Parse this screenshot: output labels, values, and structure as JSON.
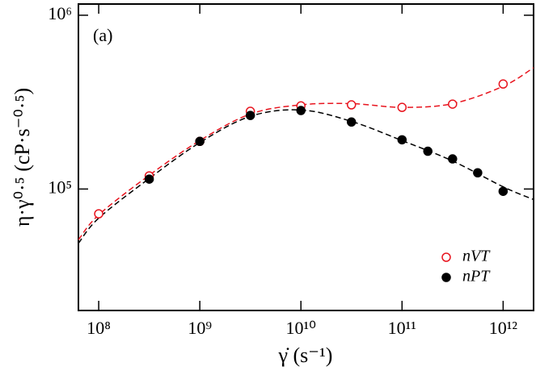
{
  "chart_data": {
    "type": "scatter",
    "annotation": "(a)",
    "x_label": "γ̇ (s⁻¹)",
    "y_label": "η·γ⁰·⁵  (cP·s⁻⁰·⁵)",
    "log_x": true,
    "log_y": true,
    "xlim": [
      63000000,
      2000000000000
    ],
    "ylim": [
      20000,
      1160000
    ],
    "xticks": [
      {
        "value": 100000000,
        "label": "10⁸"
      },
      {
        "value": 1000000000,
        "label": "10⁹"
      },
      {
        "value": 10000000000,
        "label": "10¹⁰"
      },
      {
        "value": 100000000000,
        "label": "10¹¹"
      },
      {
        "value": 1000000000000,
        "label": "10¹²"
      }
    ],
    "yticks": [
      {
        "value": 100000,
        "label": "10⁵"
      },
      {
        "value": 1000000,
        "label": "10⁶"
      }
    ],
    "legend": "bottom-right",
    "series": [
      {
        "name": "nVT",
        "color": "#e8141e",
        "marker": "open",
        "x": [
          100000000,
          316000000,
          1000000000,
          3160000000,
          10000000000,
          31600000000,
          100000000000,
          316000000000,
          1000000000000
        ],
        "values": [
          72000,
          119000,
          188000,
          280000,
          301000,
          305000,
          295000,
          308000,
          402000
        ]
      },
      {
        "name": "nPT",
        "color": "#000000",
        "marker": "filled",
        "x": [
          316000000,
          1000000000,
          3160000000,
          10000000000,
          31600000000,
          100000000000,
          180000000000,
          316000000000,
          560000000000,
          1000000000000
        ],
        "values": [
          114000,
          188000,
          265000,
          283000,
          243000,
          192000,
          165000,
          149000,
          124000,
          97000
        ]
      }
    ],
    "fits": [
      {
        "color": "#e8141e",
        "style": "dashed",
        "x": [
          63000000,
          100000000,
          316000000,
          1000000000,
          3160000000,
          10000000000,
          31600000000,
          100000000000,
          316000000000,
          1000000000000,
          2000000000000
        ],
        "values": [
          51000,
          71000,
          120000,
          190000,
          270000,
          305000,
          310000,
          295000,
          310000,
          390000,
          499000
        ]
      },
      {
        "color": "#000000",
        "style": "dashed",
        "x": [
          63000000,
          100000000,
          316000000,
          1000000000,
          3160000000,
          10000000000,
          31600000000,
          100000000000,
          316000000000,
          1000000000000,
          2000000000000
        ],
        "values": [
          48700,
          68000,
          115000,
          185000,
          262000,
          285000,
          245000,
          190000,
          145000,
          103000,
          87000
        ]
      }
    ]
  }
}
